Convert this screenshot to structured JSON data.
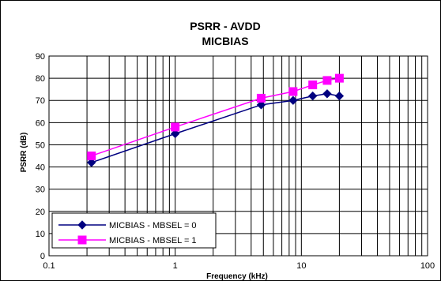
{
  "chart_data": {
    "type": "line",
    "title": "PSRR - AVDD",
    "subtitle": "MICBIAS",
    "xlabel": "Frequency (kHz)",
    "ylabel": "PSRR (dB)",
    "xscale": "log",
    "xlim": [
      0.1,
      100
    ],
    "ylim": [
      0,
      90
    ],
    "x_ticks": [
      0.1,
      1,
      10,
      100
    ],
    "x_tick_labels": [
      "0.1",
      "1",
      "10",
      "100"
    ],
    "y_ticks": [
      0,
      10,
      20,
      30,
      40,
      50,
      60,
      70,
      80,
      90
    ],
    "y_tick_labels": [
      "0",
      "10",
      "20",
      "30",
      "40",
      "50",
      "60",
      "70",
      "80",
      "90"
    ],
    "grid": true,
    "legend_position": "bottom-left",
    "series": [
      {
        "name": "MICBIAS - MBSEL = 0",
        "color": "#000080",
        "marker": "diamond",
        "x": [
          0.217,
          1,
          4.8,
          8.6,
          12.3,
          16,
          20
        ],
        "y": [
          42,
          55,
          68,
          70,
          72,
          73,
          72
        ]
      },
      {
        "name": "MICBIAS - MBSEL = 1",
        "color": "#FF00FF",
        "marker": "square",
        "x": [
          0.217,
          1,
          4.8,
          8.6,
          12.3,
          16,
          20
        ],
        "y": [
          45,
          58,
          71,
          74,
          77,
          79,
          80
        ]
      }
    ]
  }
}
